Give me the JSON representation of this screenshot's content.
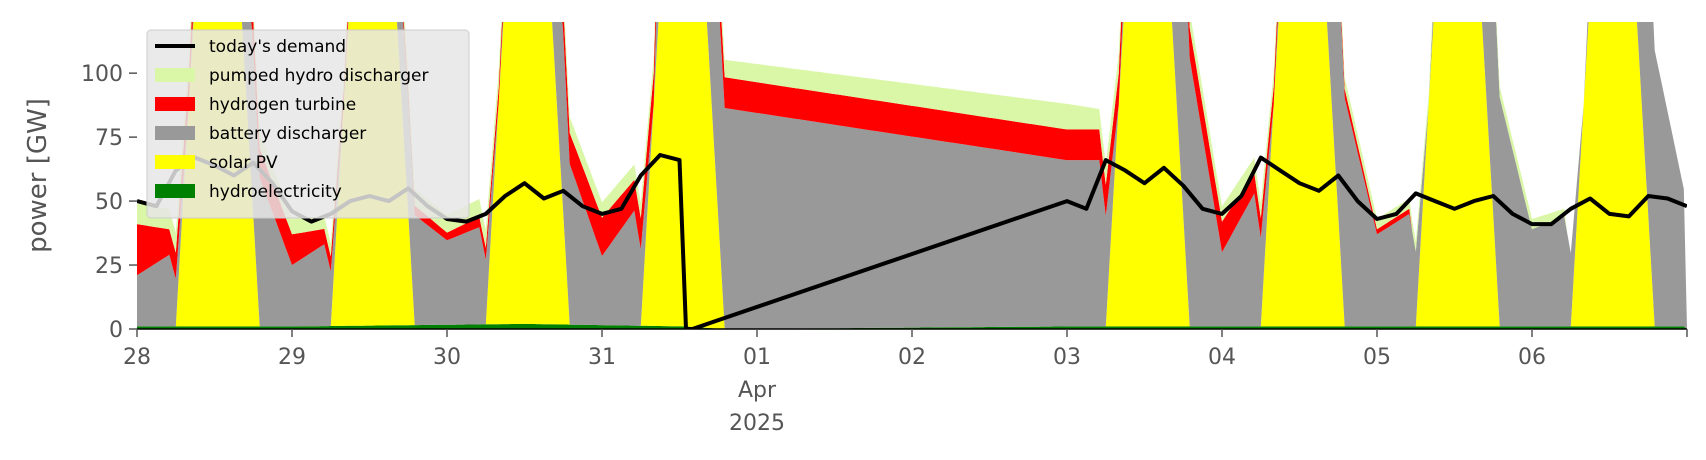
{
  "chart_data": {
    "type": "area",
    "ylabel": "power [GW]",
    "ylim": [
      0,
      120
    ],
    "xlim": [
      "2025-03-28",
      "2025-04-07"
    ],
    "grid": false,
    "legend_placement": "top-left",
    "y_ticks": [
      0,
      25,
      50,
      75,
      100
    ],
    "x_ticks": [
      {
        "date": "2025-03-28",
        "label": "28"
      },
      {
        "date": "2025-03-29",
        "label": "29"
      },
      {
        "date": "2025-03-30",
        "label": "30"
      },
      {
        "date": "2025-03-31",
        "label": "31"
      },
      {
        "date": "2025-04-01",
        "label": "01",
        "month": "Apr",
        "year": "2025"
      },
      {
        "date": "2025-04-02",
        "label": "02"
      },
      {
        "date": "2025-04-03",
        "label": "03"
      },
      {
        "date": "2025-04-04",
        "label": "04"
      },
      {
        "date": "2025-04-05",
        "label": "05"
      },
      {
        "date": "2025-04-06",
        "label": "06"
      }
    ],
    "legend": [
      {
        "name": "today's demand",
        "color": "#000000",
        "kind": "line"
      },
      {
        "name": "pumped hydro discharger",
        "color": "#d9f7a6",
        "kind": "patch"
      },
      {
        "name": "hydrogen turbine",
        "color": "#ff0000",
        "kind": "patch"
      },
      {
        "name": "battery discharger",
        "color": "#999999",
        "kind": "patch"
      },
      {
        "name": "solar PV",
        "color": "#ffff00",
        "kind": "patch"
      },
      {
        "name": "hydroelectricity",
        "color": "#008000",
        "kind": "patch"
      }
    ],
    "series": [
      {
        "name": "hydroelectricity",
        "color": "#008000",
        "x": [
          "2025-03-28T00:00",
          "2025-03-29T00:00",
          "2025-03-30T12:00",
          "2025-03-31T13:00",
          "2025-03-31T19:00",
          "2025-04-03T00:00",
          "2025-04-04T00:00",
          "2025-04-05T00:00",
          "2025-04-06T23:59"
        ],
        "values": [
          1,
          1,
          2,
          1,
          0,
          1,
          1,
          1,
          1
        ]
      },
      {
        "name": "solar PV",
        "color": "#ffff00",
        "x": [
          "2025-03-28T06:00",
          "2025-03-28T09:00",
          "2025-03-28T16:00",
          "2025-03-28T19:00",
          "2025-03-29T06:00",
          "2025-03-29T09:00",
          "2025-03-29T16:00",
          "2025-03-29T19:00",
          "2025-03-30T06:00",
          "2025-03-30T09:00",
          "2025-03-30T16:00",
          "2025-03-30T19:00",
          "2025-03-31T06:00",
          "2025-03-31T09:00",
          "2025-03-31T16:00",
          "2025-03-31T19:00",
          "2025-04-03T06:00",
          "2025-04-03T09:00",
          "2025-04-03T16:00",
          "2025-04-03T19:00",
          "2025-04-04T06:00",
          "2025-04-04T09:00",
          "2025-04-04T16:00",
          "2025-04-04T19:00",
          "2025-04-05T06:00",
          "2025-04-05T09:00",
          "2025-04-05T16:00",
          "2025-04-05T19:00",
          "2025-04-06T06:00",
          "2025-04-06T09:00",
          "2025-04-06T16:00",
          "2025-04-06T19:00"
        ],
        "values": [
          0,
          130,
          130,
          0,
          0,
          130,
          130,
          0,
          0,
          130,
          130,
          0,
          0,
          130,
          130,
          0,
          0,
          130,
          130,
          0,
          0,
          130,
          130,
          0,
          0,
          130,
          130,
          0,
          0,
          130,
          130,
          0
        ]
      },
      {
        "name": "battery discharger",
        "color": "#999999",
        "x": [
          "2025-03-28T00:00",
          "2025-03-28T05:00",
          "2025-03-28T08:00",
          "2025-03-28T18:00",
          "2025-03-29T00:00",
          "2025-03-29T05:00",
          "2025-03-29T08:00",
          "2025-03-29T18:00",
          "2025-03-30T00:00",
          "2025-03-30T05:00",
          "2025-03-30T08:00",
          "2025-03-30T18:00",
          "2025-03-31T00:00",
          "2025-03-31T05:00",
          "2025-03-31T08:00",
          "2025-03-31T10:00",
          "2025-04-03T00:00",
          "2025-04-03T05:00",
          "2025-04-03T08:00",
          "2025-04-03T18:00",
          "2025-04-04T00:00",
          "2025-04-04T05:00",
          "2025-04-04T08:00",
          "2025-04-04T18:00",
          "2025-04-05T00:00",
          "2025-04-05T05:00",
          "2025-04-05T08:00",
          "2025-04-05T18:00",
          "2025-04-06T00:00",
          "2025-04-06T05:00",
          "2025-04-06T08:00",
          "2025-04-06T18:00",
          "2025-04-06T23:59"
        ],
        "values": [
          20,
          28,
          0,
          65,
          24,
          32,
          0,
          45,
          33,
          38,
          0,
          70,
          27,
          45,
          0,
          90,
          65,
          65,
          0,
          120,
          29,
          52,
          0,
          100,
          36,
          44,
          0,
          100,
          38,
          43,
          0,
          120,
          48
        ]
      },
      {
        "name": "hydrogen turbine",
        "color": "#ff0000",
        "x": [
          "2025-03-28T00:00",
          "2025-03-28T05:00",
          "2025-03-29T00:00",
          "2025-03-29T05:00",
          "2025-03-30T00:00",
          "2025-03-30T05:00",
          "2025-03-31T00:00",
          "2025-03-31T05:00",
          "2025-04-04T00:00",
          "2025-04-04T05:00",
          "2025-04-05T00:00",
          "2025-04-05T05:00"
        ],
        "values": [
          20,
          10,
          12,
          6,
          3,
          4,
          15,
          12,
          12,
          8,
          2,
          2
        ]
      },
      {
        "name": "pumped hydro discharger",
        "color": "#d9f7a6",
        "x": [
          "2025-03-28T00:00",
          "2025-03-28T05:00",
          "2025-03-29T00:00",
          "2025-03-29T05:00",
          "2025-03-30T00:00",
          "2025-03-30T05:00",
          "2025-03-31T00:00",
          "2025-03-31T05:00",
          "2025-04-03T00:00",
          "2025-04-03T05:00",
          "2025-04-04T00:00",
          "2025-04-04T05:00",
          "2025-04-05T00:00",
          "2025-04-05T05:00",
          "2025-04-06T00:00",
          "2025-04-06T05:00"
        ],
        "values": [
          8,
          8,
          6,
          5,
          7,
          7,
          6,
          6,
          10,
          8,
          6,
          6,
          4,
          4,
          4,
          3
        ]
      },
      {
        "name": "today's demand",
        "color": "#000000",
        "kind": "line",
        "x": [
          "2025-03-28T00:00",
          "2025-03-28T03:00",
          "2025-03-28T06:00",
          "2025-03-28T09:00",
          "2025-03-28T12:00",
          "2025-03-28T15:00",
          "2025-03-28T18:00",
          "2025-03-28T21:00",
          "2025-03-29T00:00",
          "2025-03-29T03:00",
          "2025-03-29T06:00",
          "2025-03-29T09:00",
          "2025-03-29T12:00",
          "2025-03-29T15:00",
          "2025-03-29T18:00",
          "2025-03-29T21:00",
          "2025-03-30T00:00",
          "2025-03-30T03:00",
          "2025-03-30T06:00",
          "2025-03-30T09:00",
          "2025-03-30T12:00",
          "2025-03-30T15:00",
          "2025-03-30T18:00",
          "2025-03-30T21:00",
          "2025-03-31T00:00",
          "2025-03-31T03:00",
          "2025-03-31T06:00",
          "2025-03-31T09:00",
          "2025-03-31T12:00",
          "2025-03-31T13:00",
          "2025-03-31T14:00",
          "2025-04-03T00:00",
          "2025-04-03T03:00",
          "2025-04-03T06:00",
          "2025-04-03T09:00",
          "2025-04-03T12:00",
          "2025-04-03T15:00",
          "2025-04-03T18:00",
          "2025-04-03T21:00",
          "2025-04-04T00:00",
          "2025-04-04T03:00",
          "2025-04-04T06:00",
          "2025-04-04T09:00",
          "2025-04-04T12:00",
          "2025-04-04T15:00",
          "2025-04-04T18:00",
          "2025-04-04T21:00",
          "2025-04-05T00:00",
          "2025-04-05T03:00",
          "2025-04-05T06:00",
          "2025-04-05T09:00",
          "2025-04-05T12:00",
          "2025-04-05T15:00",
          "2025-04-05T18:00",
          "2025-04-05T21:00",
          "2025-04-06T00:00",
          "2025-04-06T03:00",
          "2025-04-06T06:00",
          "2025-04-06T09:00",
          "2025-04-06T12:00",
          "2025-04-06T15:00",
          "2025-04-06T18:00",
          "2025-04-06T21:00",
          "2025-04-06T23:59"
        ],
        "values": [
          50,
          48,
          62,
          67,
          64,
          60,
          65,
          57,
          46,
          42,
          45,
          50,
          52,
          50,
          55,
          48,
          43,
          42,
          45,
          52,
          57,
          51,
          54,
          48,
          45,
          47,
          60,
          68,
          66,
          0,
          0,
          50,
          47,
          66,
          62,
          57,
          63,
          56,
          47,
          45,
          52,
          67,
          62,
          57,
          54,
          60,
          50,
          43,
          45,
          53,
          50,
          47,
          50,
          52,
          45,
          41,
          41,
          47,
          51,
          45,
          44,
          52,
          51,
          48
        ]
      }
    ]
  }
}
